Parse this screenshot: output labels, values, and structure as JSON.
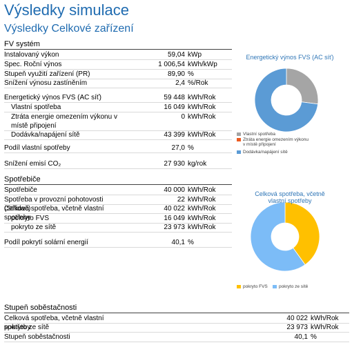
{
  "header": {
    "title": "Výsledky simulace",
    "subtitle": "Výsledky Celkové zařízení"
  },
  "sections": [
    {
      "title": "FV systém",
      "rows": [
        {
          "label": "Instalovaný výkon",
          "value": "59,04",
          "unit": "kWp"
        },
        {
          "label": "Spec. Roční výnos",
          "value": "1 006,54",
          "unit": "kWh/kWp"
        },
        {
          "label": "Stupeň využití zařízení (PR)",
          "value": "89,90",
          "unit": "%"
        },
        {
          "label": "Snížení výnosu zastíněním",
          "value": "2,4",
          "unit": "%/Rok"
        },
        {
          "label": "Energetický výnos FVS (AC síť)",
          "value": "59 448",
          "unit": "kWh/Rok"
        },
        {
          "label": "Vlastní spotřeba",
          "value": "16 049",
          "unit": "kWh/Rok"
        },
        {
          "label": "Ztráta energie omezením výkonu v místě připojení",
          "value": "0",
          "unit": "kWh/Rok"
        },
        {
          "label": "Dodávka/napájení sítě",
          "value": "43 399",
          "unit": "kWh/Rok"
        },
        {
          "label": "Podíl vlastní spotřeby",
          "value": "27,0",
          "unit": "%"
        },
        {
          "label": "Snížení emisí CO₂",
          "value": "27 930",
          "unit": "kg/rok"
        }
      ]
    },
    {
      "title": "Spotřebiče",
      "rows": [
        {
          "label": "Spotřebiče",
          "value": "40 000",
          "unit": "kWh/Rok"
        },
        {
          "label": "Spotřeba v provozní pohotovosti (Střídač)",
          "value": "22",
          "unit": "kWh/Rok"
        },
        {
          "label": "Celková spotřeba, včetně vlastní spotřeby",
          "value": "40 022",
          "unit": "kWh/Rok"
        },
        {
          "label": "pokryto FVS",
          "value": "16 049",
          "unit": "kWh/Rok"
        },
        {
          "label": "pokryto ze sítě",
          "value": "23 973",
          "unit": "kWh/Rok"
        },
        {
          "label": "Podíl pokrytí solární energií",
          "value": "40,1",
          "unit": "%"
        }
      ]
    },
    {
      "title": "Stupeň soběstačnosti",
      "rows": [
        {
          "label": "Celková spotřeba, včetně vlastní spotřeby",
          "value": "40 022",
          "unit": "kWh/Rok"
        },
        {
          "label": "pokryto ze sítě",
          "value": "23 973",
          "unit": "kWh/Rok"
        },
        {
          "label": "Stupeň soběstačnosti",
          "value": "40,1",
          "unit": "%"
        }
      ]
    }
  ],
  "chart_data": [
    {
      "type": "pie",
      "donut": true,
      "title": "Energetický výnos FVS (AC síť)",
      "categories": [
        "Vlastní spotřeba",
        "Ztráta energie omezením výkonu v místě připojení",
        "Dodávka/napájení sítě"
      ],
      "values": [
        16049,
        0,
        43399
      ],
      "colors": [
        "#a5a5a5",
        "#ed5a1f",
        "#5b9bd5"
      ]
    },
    {
      "type": "pie",
      "donut": true,
      "title": "Celková spotřeba, včetně vlastní spotřeby",
      "categories": [
        "pokryto FVS",
        "pokryto ze sítě"
      ],
      "values": [
        16049,
        23973
      ],
      "colors": [
        "#ffc000",
        "#7cbcf7"
      ]
    }
  ]
}
